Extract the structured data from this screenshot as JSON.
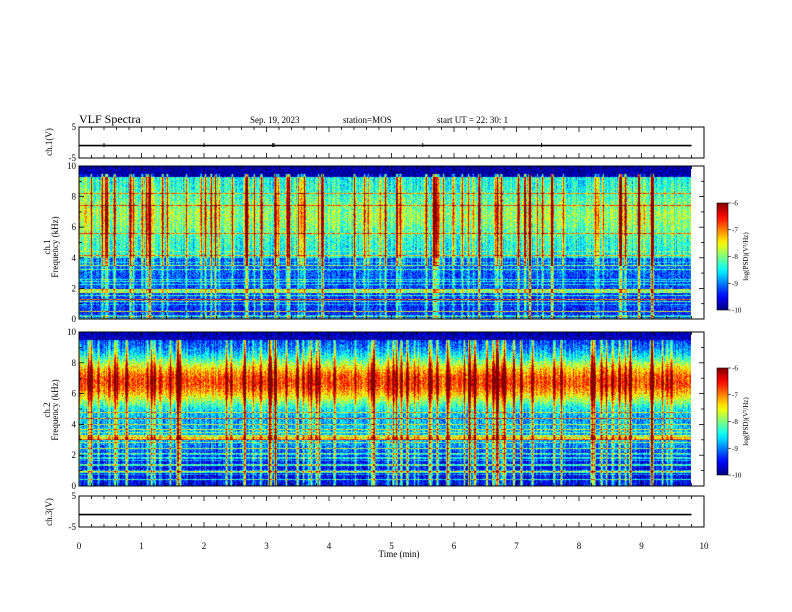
{
  "header": {
    "title": "VLF Spectra",
    "date": "Sep. 19, 2023",
    "station": "station=MOS",
    "start": "start UT =   22: 30: 1"
  },
  "chart_data": [
    {
      "type": "line",
      "name": "ch1-waveform",
      "ylabel": "ch.1(V)",
      "ylim": [
        -5,
        5
      ],
      "yticks": [
        "5",
        "-5"
      ],
      "baseline": -1.0
    },
    {
      "type": "heatmap",
      "name": "ch1-spectrogram",
      "ylabel": "ch.1\nFrequency (kHz)",
      "ylim": [
        0,
        10
      ],
      "yticks": [
        "0",
        "2",
        "4",
        "6",
        "8",
        "10"
      ],
      "colorbar": {
        "label": "log(PSD)(V²/Hz)",
        "ticks": [
          "-6",
          "-7",
          "-8",
          "-9",
          "-10"
        ],
        "range": [
          -10,
          -6
        ]
      }
    },
    {
      "type": "heatmap",
      "name": "ch2-spectrogram",
      "ylabel": "ch.2\nFrequency (kHz)",
      "ylim": [
        0,
        10
      ],
      "yticks": [
        "0",
        "2",
        "4",
        "6",
        "8",
        "10"
      ],
      "colorbar": {
        "label": "log(PSD)(V²/Hz)",
        "ticks": [
          "-6",
          "-7",
          "-8",
          "-9",
          "-10"
        ],
        "range": [
          -10,
          -6
        ]
      }
    },
    {
      "type": "line",
      "name": "ch3-waveform",
      "ylabel": "ch.3(V)",
      "ylim": [
        -5,
        5
      ],
      "yticks": [
        "5",
        "-5"
      ],
      "baseline": -1.0
    }
  ],
  "xaxis": {
    "label": "Time (min)",
    "range": [
      0,
      10
    ],
    "ticks": [
      "0",
      "1",
      "2",
      "3",
      "4",
      "5",
      "6",
      "7",
      "8",
      "9",
      "10"
    ],
    "data_end": 9.8
  }
}
